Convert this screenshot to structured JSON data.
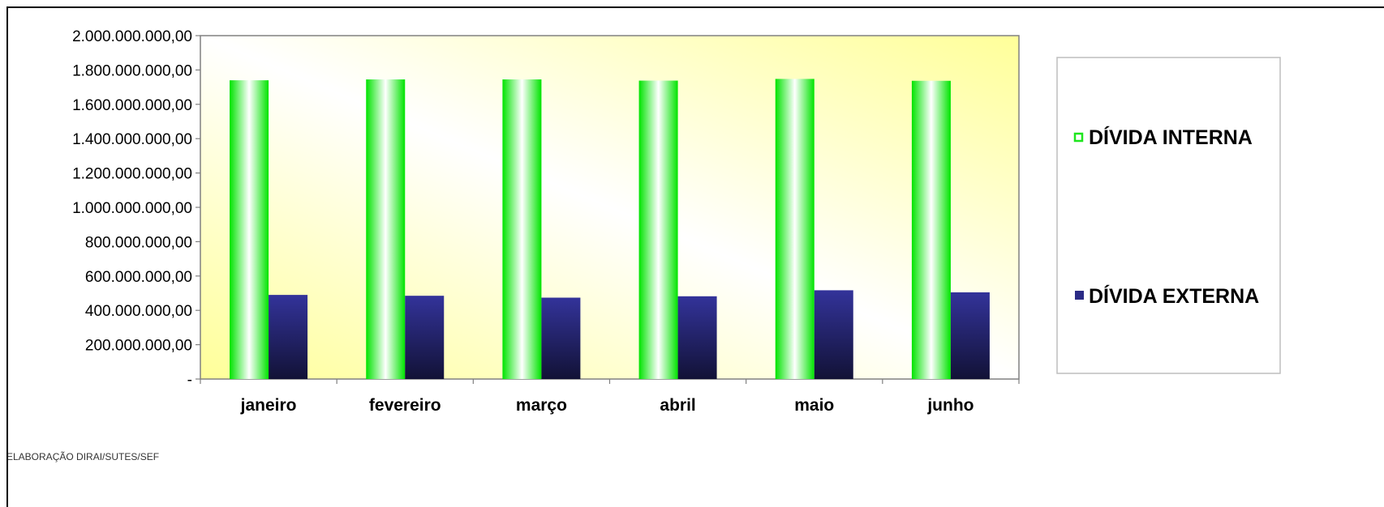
{
  "chart_data": {
    "type": "bar",
    "categories": [
      "janeiro",
      "fevereiro",
      "março",
      "abril",
      "maio",
      "junho"
    ],
    "series": [
      {
        "name": "DÍVIDA INTERNA",
        "values": [
          1740000000,
          1745000000,
          1745000000,
          1738000000,
          1748000000,
          1737000000
        ],
        "color": "#1ee61e"
      },
      {
        "name": "DÍVIDA EXTERNA",
        "values": [
          490000000,
          485000000,
          474000000,
          482000000,
          517000000,
          505000000
        ],
        "color": "#2b2b86"
      }
    ],
    "ylim": [
      0,
      2000000000
    ],
    "yticks": [
      0,
      200000000,
      400000000,
      600000000,
      800000000,
      1000000000,
      1200000000,
      1400000000,
      1600000000,
      1800000000,
      2000000000
    ],
    "ytick_labels": [
      "-",
      "200.000.000,00",
      "400.000.000,00",
      "600.000.000,00",
      "800.000.000,00",
      "1.000.000.000,00",
      "1.200.000.000,00",
      "1.400.000.000,00",
      "1.600.000.000,00",
      "1.800.000.000,00",
      "2.000.000.000,00"
    ],
    "grid": false,
    "legend_position": "right",
    "title": "",
    "xlabel": "",
    "ylabel": ""
  },
  "footer": {
    "source_text": "ELABORAÇÃO DIRAI/SUTES/SEF"
  },
  "colors": {
    "plot_gradient_light": "#ffffff",
    "plot_gradient_yellow": "#ffff99",
    "border": "#808080"
  }
}
